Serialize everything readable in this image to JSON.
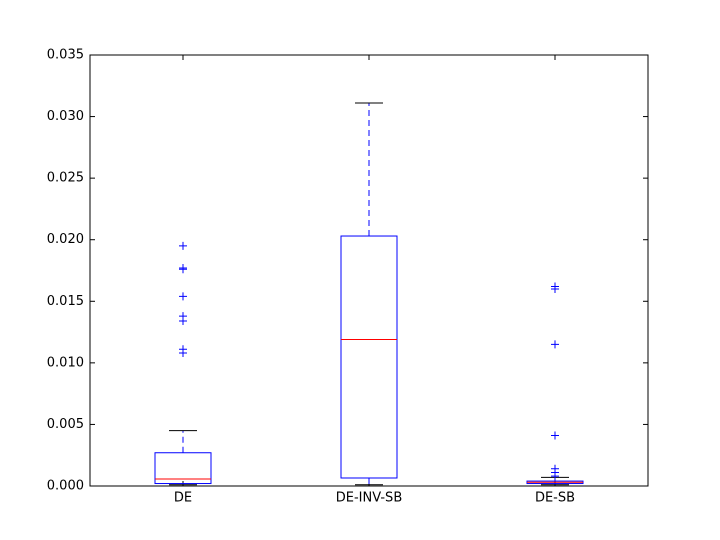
{
  "chart_data": {
    "type": "box",
    "categories": [
      "DE",
      "DE-INV-SB",
      "DE-SB"
    ],
    "boxes": [
      {
        "whislo": 0.0001,
        "q1": 0.0002,
        "med": 0.00057,
        "q3": 0.0027,
        "whishi": 0.0045,
        "fliers": [
          0.0195,
          0.0177,
          0.0176,
          0.0154,
          0.0138,
          0.0134,
          0.0111,
          0.0108
        ]
      },
      {
        "whislo": 0.0001,
        "q1": 0.00065,
        "med": 0.0119,
        "q3": 0.0203,
        "whishi": 0.0311,
        "fliers": []
      },
      {
        "whislo": 0.0001,
        "q1": 0.0002,
        "med": 0.0003,
        "q3": 0.0004,
        "whishi": 0.0007,
        "fliers": [
          0.0162,
          0.016,
          0.0115,
          0.0041,
          0.0014,
          0.0011,
          0.0008
        ]
      }
    ],
    "box_color": "#0000ff",
    "median_color": "#ff0000",
    "whisker_cap_color": "#000000",
    "ylim": [
      0,
      0.035
    ],
    "yticks": [
      {
        "value": 0,
        "label": "0.000"
      },
      0.005,
      {
        "value": 0.01,
        "label": "0.010"
      },
      0.015,
      {
        "value": 0.02,
        "label": "0.020"
      },
      0.025,
      {
        "value": 0.03,
        "label": "0.030"
      },
      0.035
    ],
    "grid": false
  }
}
